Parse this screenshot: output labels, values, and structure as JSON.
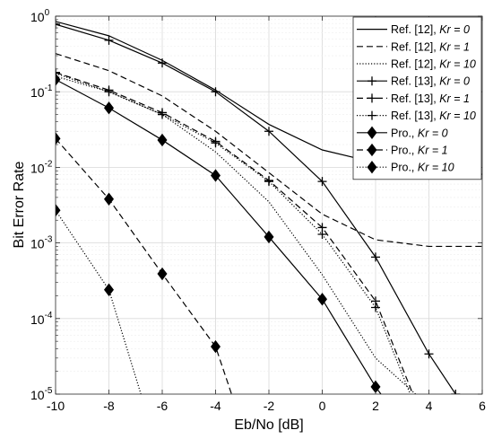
{
  "chart_data": {
    "type": "line",
    "xlabel": "Eb/No [dB]",
    "ylabel": "Bit Error Rate",
    "xlim": [
      -10,
      6
    ],
    "ylim": [
      1e-05,
      1
    ],
    "yscale": "log",
    "x_ticks": [
      "-10",
      "-8",
      "-6",
      "-4",
      "-2",
      "0",
      "2",
      "4",
      "6"
    ],
    "y_ticks": [
      {
        "base": "10",
        "exp": "0"
      },
      {
        "base": "10",
        "exp": "-1"
      },
      {
        "base": "10",
        "exp": "-2"
      },
      {
        "base": "10",
        "exp": "-3"
      },
      {
        "base": "10",
        "exp": "-4"
      },
      {
        "base": "10",
        "exp": "-5"
      }
    ],
    "grid": true,
    "legend_position": "top-right",
    "series": [
      {
        "name": "Ref. [12], Kr = 0",
        "label": "Ref. [12], ",
        "kr": "Kr = 0",
        "style": "solid",
        "marker": "none",
        "x": [
          -10,
          -8,
          -6,
          -4,
          -2,
          0,
          2,
          4,
          6
        ],
        "y": [
          0.85,
          0.55,
          0.26,
          0.105,
          0.037,
          0.017,
          0.0115,
          0.0088,
          0.0081
        ]
      },
      {
        "name": "Ref. [12], Kr = 1",
        "label": "Ref. [12], ",
        "kr": "Kr = 1",
        "style": "dashed",
        "marker": "none",
        "x": [
          -10,
          -8,
          -6,
          -4,
          -2,
          0,
          2,
          4,
          6
        ],
        "y": [
          0.32,
          0.19,
          0.088,
          0.03,
          0.0085,
          0.0024,
          0.0011,
          0.0009,
          0.0009
        ]
      },
      {
        "name": "Ref. [12], Kr = 10",
        "label": "Ref. [12], ",
        "kr": "Kr = 10",
        "style": "dotted",
        "marker": "none",
        "x": [
          -10,
          -8,
          -6,
          -4,
          -2,
          0,
          2,
          3.5
        ],
        "y": [
          0.16,
          0.1,
          0.05,
          0.016,
          0.0035,
          0.00038,
          3e-05,
          1e-05
        ]
      },
      {
        "name": "Ref. [13], Kr = 0",
        "label": "Ref. [13], ",
        "kr": "Kr = 0",
        "style": "solid",
        "marker": "plus",
        "x": [
          -10,
          -8,
          -6,
          -4,
          -2,
          0,
          2,
          4,
          5
        ],
        "y": [
          0.78,
          0.48,
          0.24,
          0.1,
          0.03,
          0.0065,
          0.00065,
          3.4e-05,
          1e-05
        ]
      },
      {
        "name": "Ref. [13], Kr = 1",
        "label": "Ref. [13], ",
        "kr": "Kr = 1",
        "style": "dashed",
        "marker": "plus",
        "x": [
          -10,
          -8,
          -6,
          -4,
          -2,
          0,
          2,
          3.4
        ],
        "y": [
          0.18,
          0.105,
          0.053,
          0.022,
          0.0067,
          0.0016,
          0.00017,
          1e-05
        ]
      },
      {
        "name": "Ref. [13], Kr = 10",
        "label": "Ref. [13], ",
        "kr": "Kr = 10",
        "style": "dotted",
        "marker": "plus",
        "x": [
          -10,
          -8,
          -6,
          -4,
          -2,
          0,
          2,
          3.3
        ],
        "y": [
          0.175,
          0.1,
          0.05,
          0.021,
          0.0065,
          0.0013,
          0.00014,
          1e-05
        ]
      },
      {
        "name": "Pro., Kr = 0",
        "label": "Pro., ",
        "kr": "Kr = 0",
        "style": "solid",
        "marker": "diamond",
        "x": [
          -10,
          -8,
          -6,
          -4,
          -2,
          0,
          2,
          2.2
        ],
        "y": [
          0.145,
          0.061,
          0.023,
          0.0078,
          0.0012,
          0.00018,
          1.25e-05,
          1e-05
        ]
      },
      {
        "name": "Pro., Kr = 1",
        "label": "Pro., ",
        "kr": "Kr = 1",
        "style": "dashed",
        "marker": "diamond",
        "x": [
          -10,
          -8,
          -6,
          -4,
          -3.4
        ],
        "y": [
          0.024,
          0.0038,
          0.00039,
          4.25e-05,
          1e-05
        ]
      },
      {
        "name": "Pro., Kr = 10",
        "label": "Pro., ",
        "kr": "Kr = 10",
        "style": "dotted",
        "marker": "diamond",
        "x": [
          -10,
          -8,
          -6.8
        ],
        "y": [
          0.0027,
          0.00024,
          1e-05
        ]
      }
    ]
  }
}
